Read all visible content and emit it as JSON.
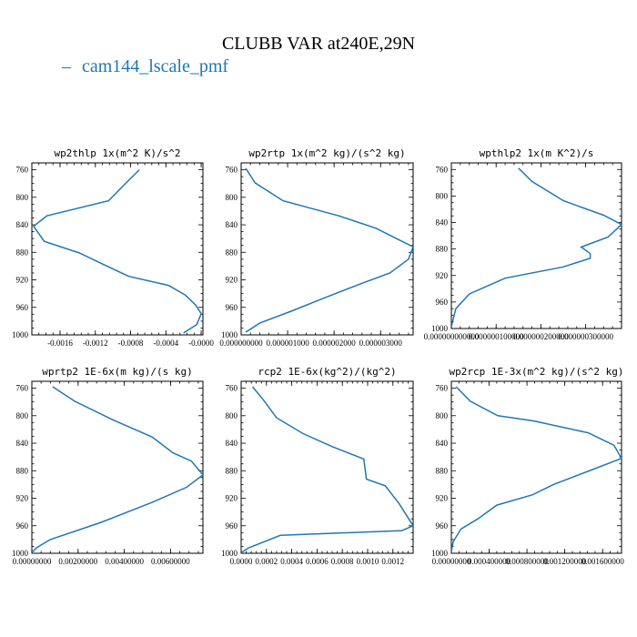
{
  "figure": {
    "title": "CLUBB VAR at240E,29N",
    "legend_label": "cam144_lscale_pmf",
    "series_color": "#1f77b4"
  },
  "chart_data": [
    {
      "type": "line",
      "title": "wp2thlp  1x(m^2 K)/s^2",
      "series": [
        {
          "name": "cam144_lscale_pmf",
          "x": [
            -0.0007,
            -0.00085,
            -0.00105,
            -0.00175,
            -0.0019,
            -0.00178,
            -0.00138,
            -0.00112,
            -0.00082,
            -0.00037,
            -0.00018,
            -6e-05,
            0.0,
            -5e-05,
            -0.0002
          ],
          "y": [
            760,
            779,
            805,
            827,
            842,
            864,
            881,
            897,
            915,
            928,
            942,
            957,
            969,
            985,
            997
          ]
        }
      ],
      "ylim": [
        1000,
        750
      ],
      "yticks": [
        760,
        800,
        840,
        880,
        920,
        960,
        1000
      ],
      "ytick_labels": [
        "760",
        "800",
        "840",
        "880",
        "920",
        "960",
        "1000"
      ],
      "xlim": [
        -0.00192,
        2e-05
      ],
      "xticks": [
        -0.0016,
        -0.0012,
        -0.0008,
        -0.0004,
        0.0
      ],
      "xtick_labels": [
        "-0.0016",
        "-0.0012",
        "-0.0008",
        "-0.0004",
        "-0.0000"
      ]
    },
    {
      "type": "line",
      "title": "wp2rtp  1x(m^2 kg)/(s^2 kg)",
      "series": [
        {
          "name": "cam144_lscale_pmf",
          "x": [
            1e-07,
            3e-07,
            9e-07,
            2.1e-06,
            2.9e-06,
            3.4e-06,
            3.7e-06,
            3.6e-06,
            3.2e-06,
            2.6e-06,
            1.8e-06,
            1.1e-06,
            4e-07,
            1e-07
          ],
          "y": [
            758,
            779,
            805,
            827,
            845,
            862,
            872,
            890,
            910,
            925,
            946,
            965,
            983,
            996
          ]
        }
      ],
      "ylim": [
        1000,
        750
      ],
      "yticks": [
        760,
        800,
        840,
        880,
        920,
        960,
        1000
      ],
      "ytick_labels": [
        "760",
        "800",
        "840",
        "880",
        "920",
        "960",
        "1000"
      ],
      "xlim": [
        0.0,
        3.7e-06
      ],
      "xticks": [
        0.0,
        1e-06,
        2e-06,
        3e-06
      ],
      "xtick_labels": [
        "0.000000000",
        "0.000001000",
        "0.000002000",
        "0.000003000"
      ]
    },
    {
      "type": "line",
      "title": "wpthlp2  1x(m K^2)/s",
      "series": [
        {
          "name": "cam144_lscale_pmf",
          "x": [
            1.5e-07,
            1.8e-07,
            2.5e-07,
            3.4e-07,
            3.8e-07,
            3.5e-07,
            2.9e-07,
            3.1e-07,
            3.1e-07,
            2.5e-07,
            1.2e-07,
            9e-08,
            4e-08,
            1e-08,
            0.0
          ],
          "y": [
            758,
            778,
            807,
            829,
            843,
            862,
            877,
            887,
            894,
            907,
            924,
            933,
            948,
            970,
            997
          ]
        }
      ],
      "ylim": [
        1000,
        750
      ],
      "yticks": [
        760,
        800,
        840,
        880,
        920,
        960,
        1000
      ],
      "ytick_labels": [
        "760",
        "800",
        "840",
        "880",
        "920",
        "960",
        "1000"
      ],
      "xlim": [
        0.0,
        3.8e-07
      ],
      "xticks": [
        0.0,
        1e-07,
        2e-07,
        3e-07
      ],
      "xtick_labels": [
        "0.000000000000",
        "0.000000100000",
        "0.000000200000",
        "0.000000300000"
      ]
    },
    {
      "type": "line",
      "title": "wprtp2  1E-6x(m kg)/(s kg)",
      "series": [
        {
          "name": "cam144_lscale_pmf",
          "x": [
            0.0009,
            0.00185,
            0.0035,
            0.0052,
            0.0061,
            0.0069,
            0.0074,
            0.0067,
            0.0052,
            0.003,
            0.0008,
            0.0002,
            0.0
          ],
          "y": [
            758,
            779,
            806,
            831,
            854,
            866,
            886,
            904,
            926,
            955,
            980,
            992,
            999
          ]
        }
      ],
      "ylim": [
        1000,
        750
      ],
      "yticks": [
        760,
        800,
        840,
        880,
        920,
        960,
        1000
      ],
      "ytick_labels": [
        "760",
        "800",
        "840",
        "880",
        "920",
        "960",
        "1000"
      ],
      "xlim": [
        0.0,
        0.0074
      ],
      "xticks": [
        0.0,
        0.002,
        0.004,
        0.006
      ],
      "xtick_labels": [
        "0.00000000",
        "0.00200000",
        "0.00400000",
        "0.00600000"
      ]
    },
    {
      "type": "line",
      "title": "rcp2  1E-6x(kg^2)/(kg^2)",
      "series": [
        {
          "name": "cam144_lscale_pmf",
          "x": [
            9e-05,
            0.00018,
            0.00028,
            0.00049,
            0.00072,
            0.00097,
            0.00099,
            0.00114,
            0.00125,
            0.00136,
            0.00127,
            0.00031,
            6e-05,
            0.0
          ],
          "y": [
            758,
            778,
            803,
            826,
            845,
            863,
            892,
            902,
            928,
            960,
            967,
            974,
            992,
            999
          ]
        }
      ],
      "ylim": [
        1000,
        750
      ],
      "yticks": [
        760,
        800,
        840,
        880,
        920,
        960,
        1000
      ],
      "ytick_labels": [
        "760",
        "800",
        "840",
        "880",
        "920",
        "960",
        "1000"
      ],
      "xlim": [
        0.0,
        0.00136
      ],
      "xticks": [
        0.0,
        0.0002,
        0.0004,
        0.0006,
        0.0008,
        0.001,
        0.0012
      ],
      "xtick_labels": [
        "0.0000",
        "0.0002",
        "0.0004",
        "0.0006",
        "0.0008",
        "0.0010",
        "0.0012"
      ]
    },
    {
      "type": "line",
      "title": "wp2rcp  1E-3x(m^2 kg)/(s^2 kg)",
      "series": [
        {
          "name": "cam144_lscale_pmf",
          "x": [
            5e-05,
            0.0002,
            0.00049,
            0.00088,
            0.00145,
            0.00172,
            0.0018,
            0.00148,
            0.00108,
            0.00086,
            0.00048,
            0.00028,
            0.0001,
            2e-05,
            0.0
          ],
          "y": [
            758,
            779,
            800,
            808,
            825,
            843,
            862,
            879,
            900,
            915,
            930,
            950,
            965,
            983,
            997
          ]
        }
      ],
      "ylim": [
        1000,
        750
      ],
      "yticks": [
        760,
        800,
        840,
        880,
        920,
        960,
        1000
      ],
      "ytick_labels": [
        "760",
        "800",
        "840",
        "880",
        "920",
        "960",
        "1000"
      ],
      "xlim": [
        0.0,
        0.0018
      ],
      "xticks": [
        0.0,
        0.0004,
        0.0008,
        0.0012,
        0.0016
      ],
      "xtick_labels": [
        "0.00000000",
        "0.000400000",
        "0.000800000",
        "0.001200000",
        "0.001600000"
      ]
    }
  ]
}
